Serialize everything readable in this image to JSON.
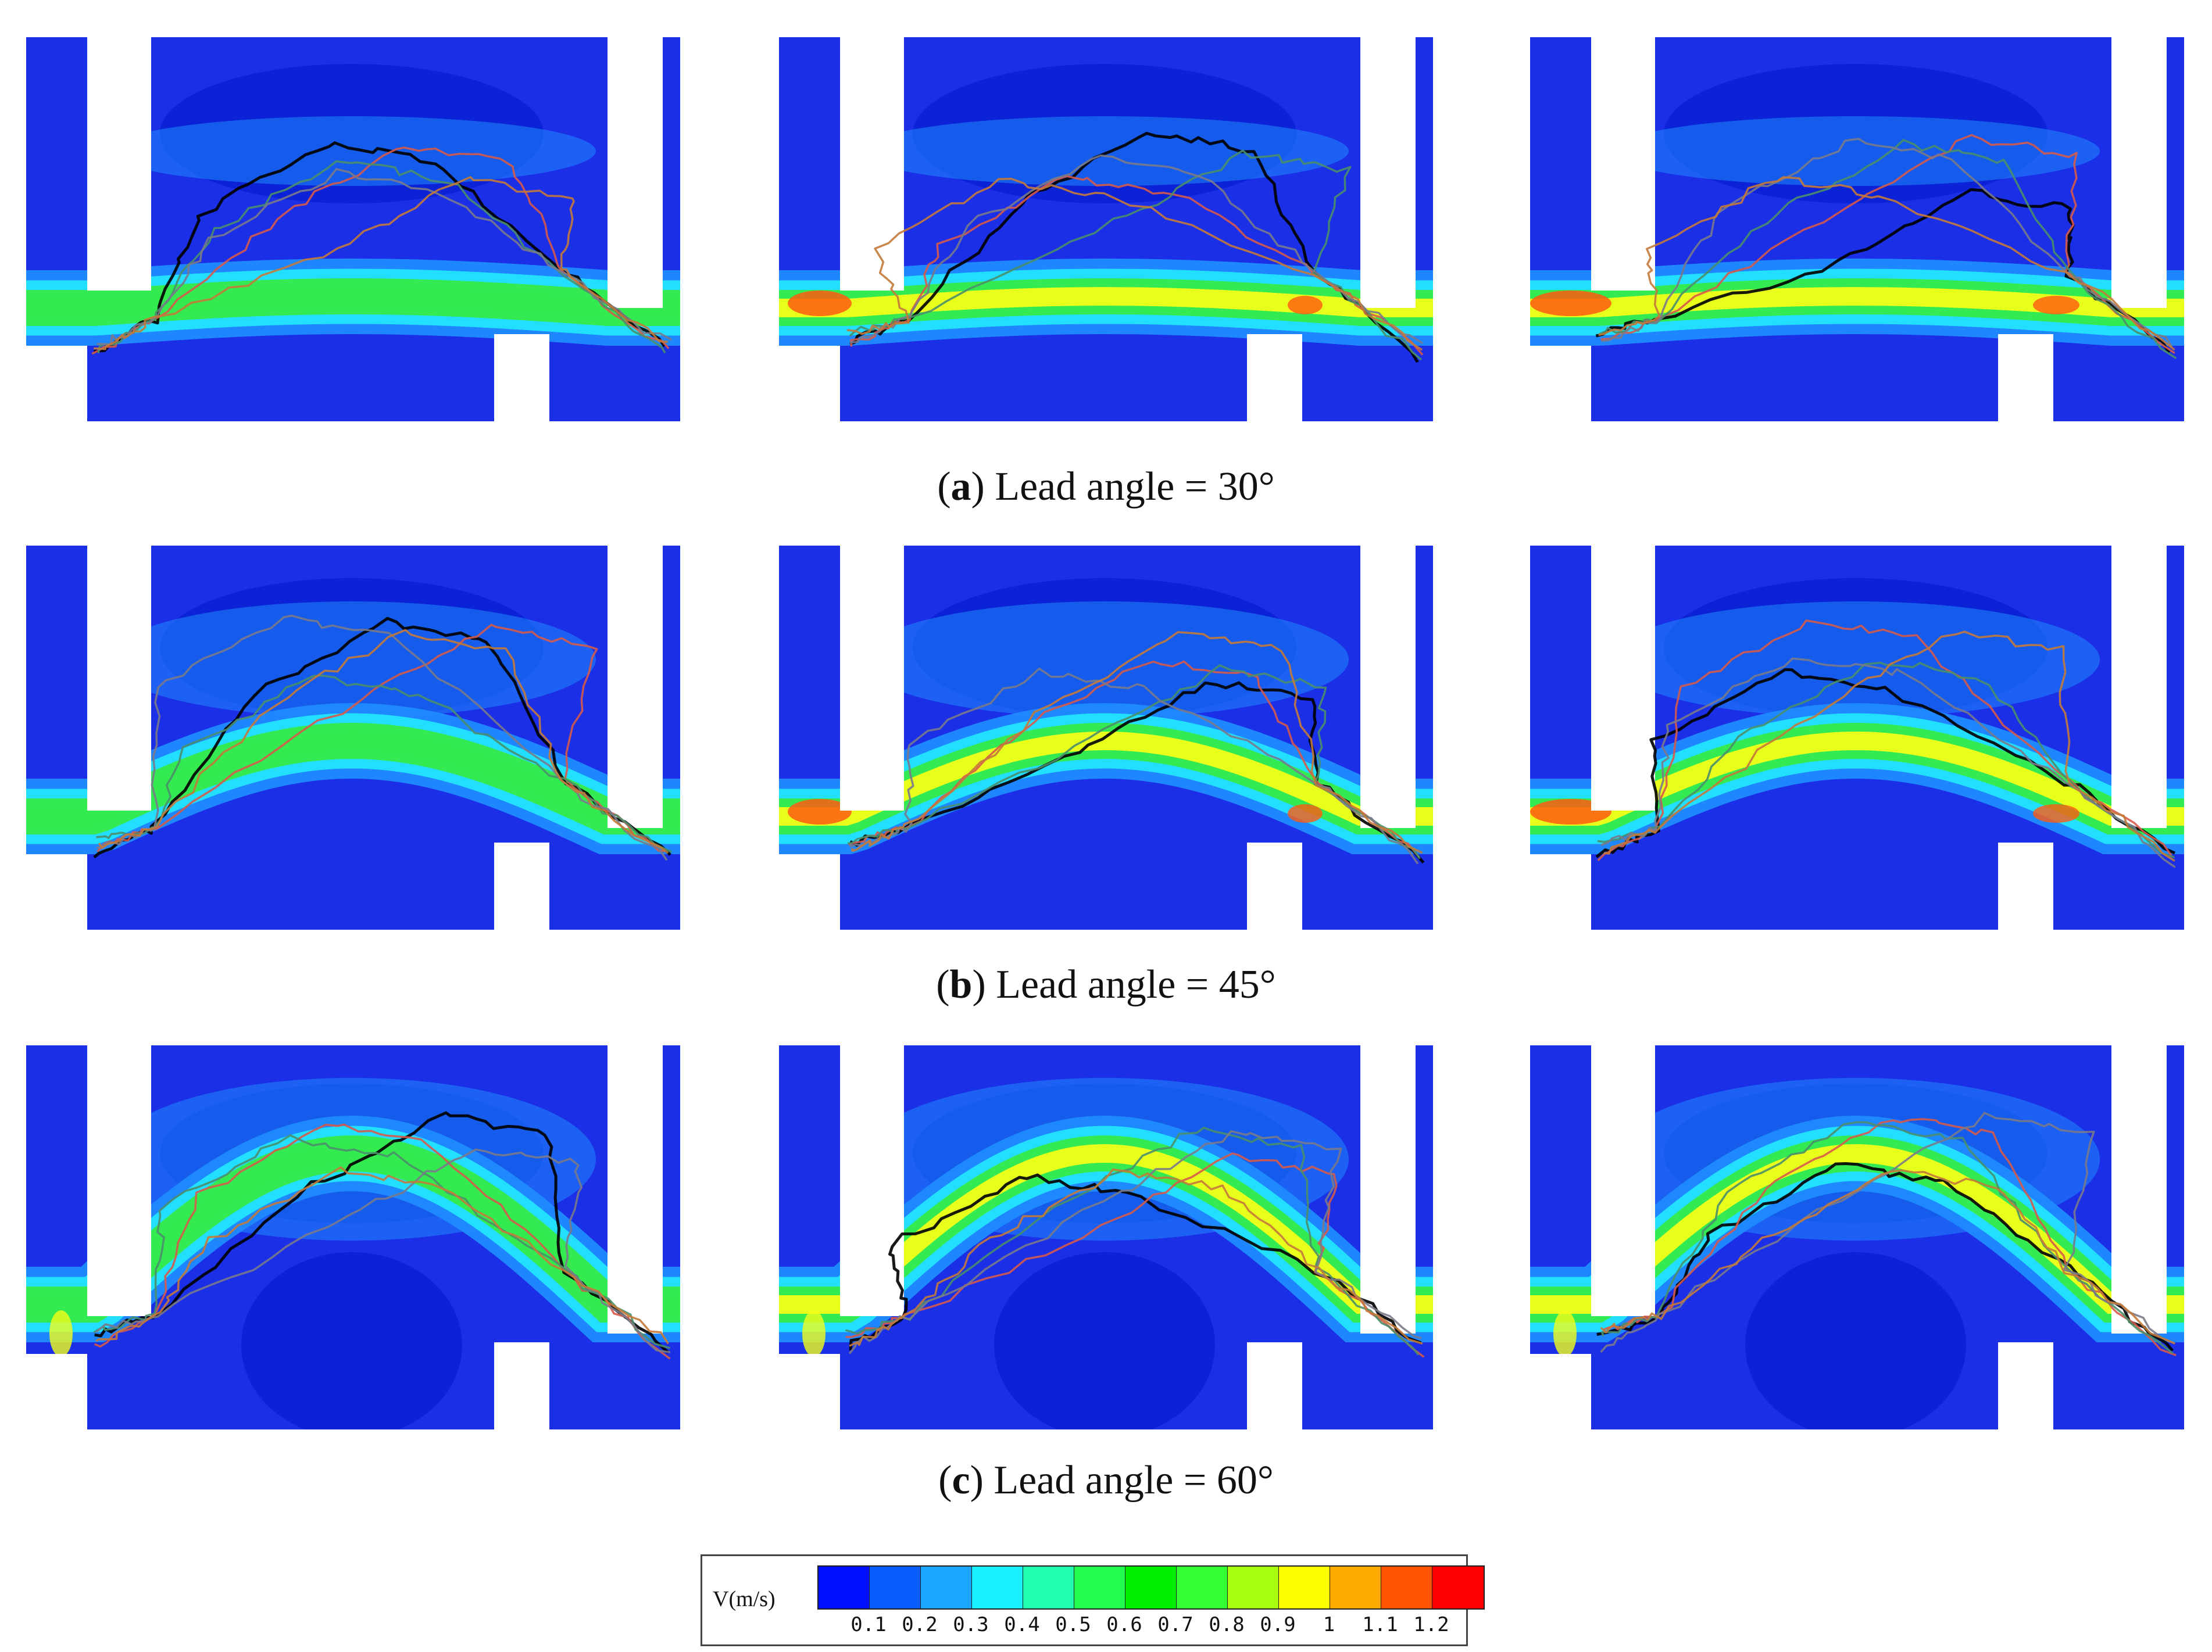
{
  "figure": {
    "rows": [
      {
        "label": "a",
        "caption_text": ") Lead angle = 30°",
        "panels": [
          {
            "name": "lead-30-panel-1"
          },
          {
            "name": "lead-30-panel-2"
          },
          {
            "name": "lead-30-panel-3"
          }
        ]
      },
      {
        "label": "b",
        "caption_text": ") Lead angle = 45°",
        "panels": [
          {
            "name": "lead-45-panel-1"
          },
          {
            "name": "lead-45-panel-2"
          },
          {
            "name": "lead-45-panel-3"
          }
        ]
      },
      {
        "label": "c",
        "caption_text": ") Lead angle = 60°",
        "panels": [
          {
            "name": "lead-60-panel-1"
          },
          {
            "name": "lead-60-panel-2"
          },
          {
            "name": "lead-60-panel-3"
          }
        ]
      }
    ]
  },
  "legend": {
    "title": "V(m/s)",
    "colors": [
      "#0010ff",
      "#0a5cff",
      "#1aa6ff",
      "#19f0ff",
      "#22ffb0",
      "#22ff50",
      "#00ee00",
      "#33ff33",
      "#a8ff10",
      "#ffff00",
      "#ffaa00",
      "#ff5500",
      "#ff0000"
    ],
    "ticks": [
      "0.1",
      "0.2",
      "0.3",
      "0.4",
      "0.5",
      "0.6",
      "0.7",
      "0.8",
      "0.9",
      "1",
      "1.1",
      "1.2"
    ]
  },
  "colors": {
    "background_blue": "#1a2fe6",
    "deep_blue": "#0b22d6",
    "mid_blue": "#1f8bff",
    "cyan": "#23e4ff",
    "green": "#35ea4a",
    "yellow": "#f2ff18",
    "orange": "#ff5a10",
    "trajectory_colors": [
      "#000000",
      "#d65a4a",
      "#4a8f6a",
      "#7a7a8a",
      "#c47a3a"
    ]
  }
}
